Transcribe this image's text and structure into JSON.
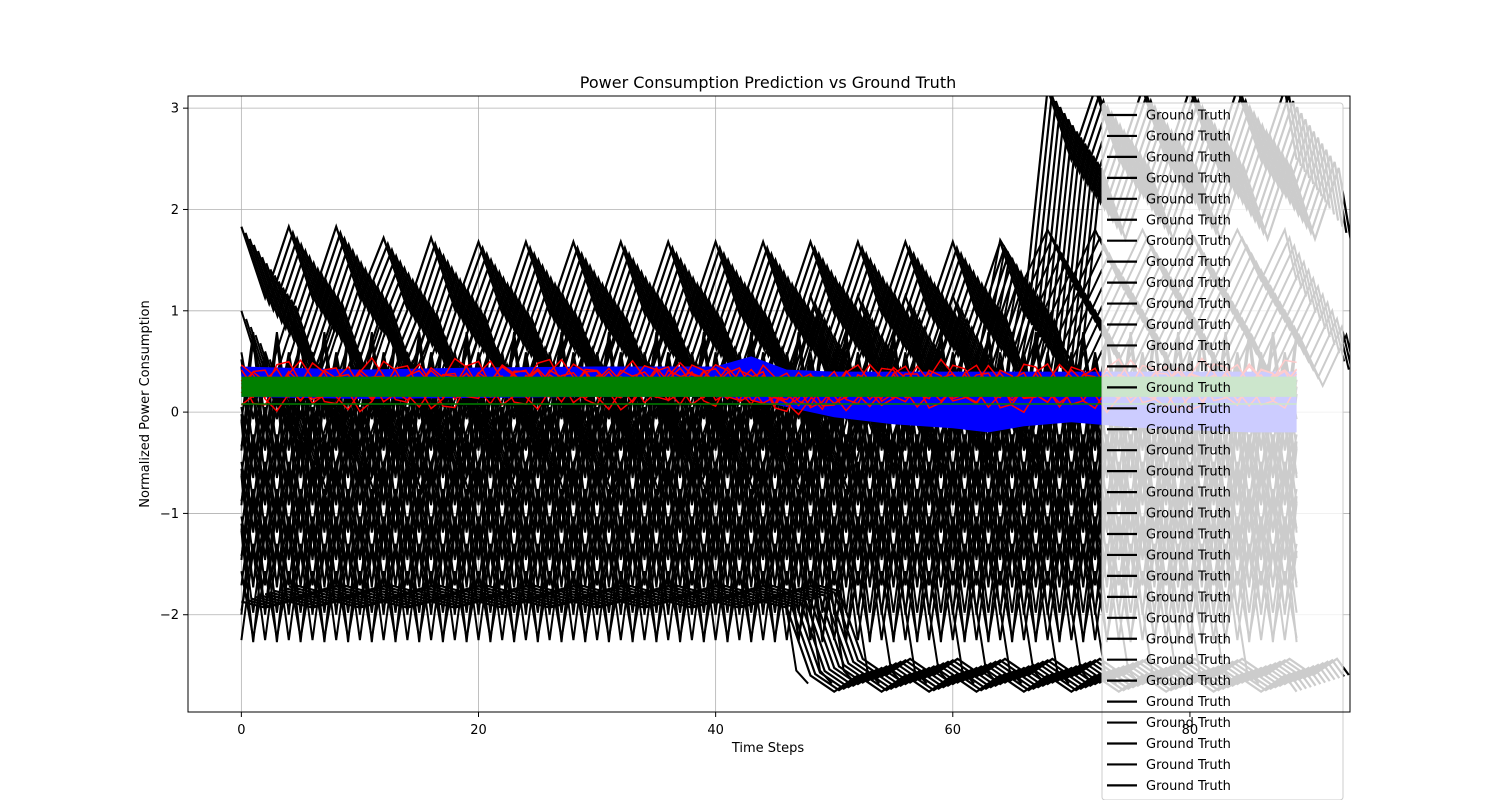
{
  "chart_data": {
    "type": "line",
    "title": "Power Consumption Prediction vs Ground Truth",
    "xlabel": "Time Steps",
    "ylabel": "Normalized Power Consumption",
    "xlim": [
      -4.5,
      93.5
    ],
    "ylim": [
      -2.96,
      3.12
    ],
    "x_ticks": [
      0,
      20,
      40,
      60,
      80
    ],
    "y_ticks": [
      -2,
      -1,
      0,
      1,
      2,
      3
    ],
    "grid": true,
    "legend_position": "upper-right",
    "legend_entries": [
      "Ground Truth",
      "Ground Truth",
      "Ground Truth",
      "Ground Truth",
      "Ground Truth",
      "Ground Truth",
      "Ground Truth",
      "Ground Truth",
      "Ground Truth",
      "Ground Truth",
      "Ground Truth",
      "Ground Truth",
      "Ground Truth",
      "Ground Truth",
      "Ground Truth",
      "Ground Truth",
      "Ground Truth",
      "Ground Truth",
      "Ground Truth",
      "Ground Truth",
      "Ground Truth",
      "Ground Truth",
      "Ground Truth",
      "Ground Truth",
      "Ground Truth",
      "Ground Truth",
      "Ground Truth",
      "Ground Truth",
      "Ground Truth",
      "Ground Truth",
      "Ground Truth",
      "Ground Truth",
      "Ground Truth",
      "Ground Truth"
    ],
    "series": [
      {
        "color": "#000000",
        "role": "ground-truth-high",
        "x": [
          0,
          2,
          4,
          6,
          8,
          10,
          12,
          14,
          16,
          18,
          20,
          22,
          24,
          26,
          28,
          30,
          32,
          34,
          36,
          38,
          40,
          42,
          44,
          46,
          48,
          50,
          52,
          54,
          56,
          58,
          60,
          62,
          64,
          66,
          68,
          70,
          72,
          74,
          76,
          78,
          80,
          82,
          84,
          86,
          88,
          89
        ],
        "y": [
          1.48,
          1.48,
          1.48,
          1.48,
          1.48,
          1.48,
          1.37,
          1.37,
          1.37,
          1.37,
          1.33,
          1.33,
          1.33,
          1.33,
          1.33,
          1.33,
          1.33,
          1.33,
          1.33,
          1.33,
          1.33,
          1.33,
          1.33,
          1.33,
          1.33,
          1.33,
          1.33,
          1.33,
          1.33,
          1.33,
          1.33,
          1.33,
          1.33,
          1.33,
          2.84,
          2.84,
          2.84,
          2.84,
          2.84,
          2.84,
          2.84,
          2.84,
          2.84,
          2.84,
          2.84,
          2.84
        ]
      },
      {
        "color": "#000000",
        "role": "ground-truth-mid",
        "x": [
          0,
          2,
          4,
          6,
          8,
          10,
          12,
          14,
          16,
          18,
          20,
          22,
          24,
          26,
          28,
          30,
          32,
          34,
          36,
          38,
          40,
          42,
          44,
          46,
          48,
          50,
          52,
          54,
          56,
          58,
          60,
          62,
          64,
          66,
          68,
          70,
          72,
          74,
          76,
          78,
          80,
          82,
          84,
          86,
          88,
          89
        ],
        "y": [
          0.75,
          0.5,
          0.72,
          0.5,
          0.72,
          0.5,
          0.72,
          0.5,
          0.72,
          0.5,
          0.7,
          0.5,
          0.7,
          0.5,
          0.7,
          0.5,
          0.7,
          0.5,
          0.7,
          0.5,
          0.7,
          0.5,
          0.7,
          0.5,
          0.9,
          0.7,
          0.9,
          0.7,
          0.9,
          0.7,
          0.9,
          0.7,
          1.45,
          1.55,
          1.55,
          1.55,
          1.55,
          1.55,
          1.55,
          1.55,
          1.55,
          1.55,
          1.55,
          1.55,
          1.55,
          1.55
        ]
      },
      {
        "color": "#000000",
        "role": "ground-truth-low",
        "x": [
          0,
          2,
          4,
          6,
          8,
          10,
          12,
          14,
          16,
          18,
          20,
          22,
          24,
          26,
          28,
          30,
          32,
          34,
          36,
          38,
          40,
          42,
          44,
          46,
          48,
          50,
          52,
          54,
          56,
          58,
          60,
          62,
          64,
          66,
          68,
          70,
          72,
          74,
          76,
          78,
          80,
          82,
          84,
          86,
          88,
          89
        ],
        "y": [
          -1.95,
          -1.85,
          -1.95,
          -1.85,
          -1.95,
          -1.85,
          -1.95,
          -1.85,
          -1.95,
          -1.85,
          -1.95,
          -1.85,
          -1.95,
          -1.85,
          -1.95,
          -1.85,
          -1.95,
          -1.85,
          -1.95,
          -1.85,
          -1.95,
          -1.85,
          -1.95,
          -1.85,
          -2.68,
          -2.68,
          -2.68,
          -2.68,
          -2.68,
          -2.68,
          -2.68,
          -2.68,
          -2.68,
          -2.68,
          -2.68,
          -2.68,
          -2.68,
          -2.68,
          -2.68,
          -2.68,
          -2.68,
          -2.68,
          -2.68,
          -2.68,
          -2.68,
          -2.68
        ]
      },
      {
        "color": "#0000ff",
        "role": "prediction-band-upper",
        "x": [
          0,
          10,
          20,
          30,
          40,
          43,
          46,
          50,
          55,
          60,
          63,
          66,
          70,
          75,
          80,
          85,
          89
        ],
        "y": [
          0.45,
          0.42,
          0.44,
          0.45,
          0.45,
          0.55,
          0.42,
          0.4,
          0.4,
          0.4,
          0.4,
          0.4,
          0.4,
          0.4,
          0.4,
          0.4,
          0.4
        ]
      },
      {
        "color": "#0000ff",
        "role": "prediction-band-lower",
        "x": [
          0,
          10,
          20,
          30,
          40,
          43,
          46,
          50,
          55,
          60,
          63,
          66,
          70,
          75,
          80,
          85,
          89
        ],
        "y": [
          0.15,
          0.13,
          0.14,
          0.15,
          0.15,
          0.12,
          0.05,
          -0.05,
          -0.12,
          -0.16,
          -0.2,
          -0.14,
          -0.1,
          -0.15,
          -0.18,
          -0.2,
          -0.2
        ]
      },
      {
        "color": "#ff0000",
        "role": "prediction-upper",
        "x": [
          0,
          5,
          10,
          15,
          20,
          25,
          30,
          35,
          40,
          45,
          50,
          55,
          60,
          65,
          70,
          75,
          80,
          85,
          89
        ],
        "y": [
          0.5,
          0.5,
          0.55,
          0.52,
          0.6,
          0.52,
          0.55,
          0.55,
          0.5,
          0.55,
          0.5,
          0.55,
          0.5,
          0.5,
          0.55,
          0.5,
          0.55,
          0.55,
          0.6
        ]
      },
      {
        "color": "#ff0000",
        "role": "prediction-lower",
        "x": [
          0,
          5,
          10,
          15,
          20,
          25,
          30,
          35,
          40,
          45,
          50,
          55,
          60,
          65,
          70,
          75,
          80,
          85,
          89
        ],
        "y": [
          0.05,
          0.05,
          0.0,
          0.05,
          0.0,
          0.08,
          0.0,
          0.05,
          0.05,
          -0.15,
          0.0,
          0.0,
          0.02,
          0.0,
          0.0,
          0.05,
          0.0,
          0.05,
          0.05
        ]
      },
      {
        "color": "#008000",
        "role": "baseline-band",
        "x": [
          0,
          89
        ],
        "y_upper": [
          0.35,
          0.35
        ],
        "y_lower": [
          0.15,
          0.15
        ],
        "y_line": [
          0.08,
          0.08
        ]
      }
    ]
  }
}
